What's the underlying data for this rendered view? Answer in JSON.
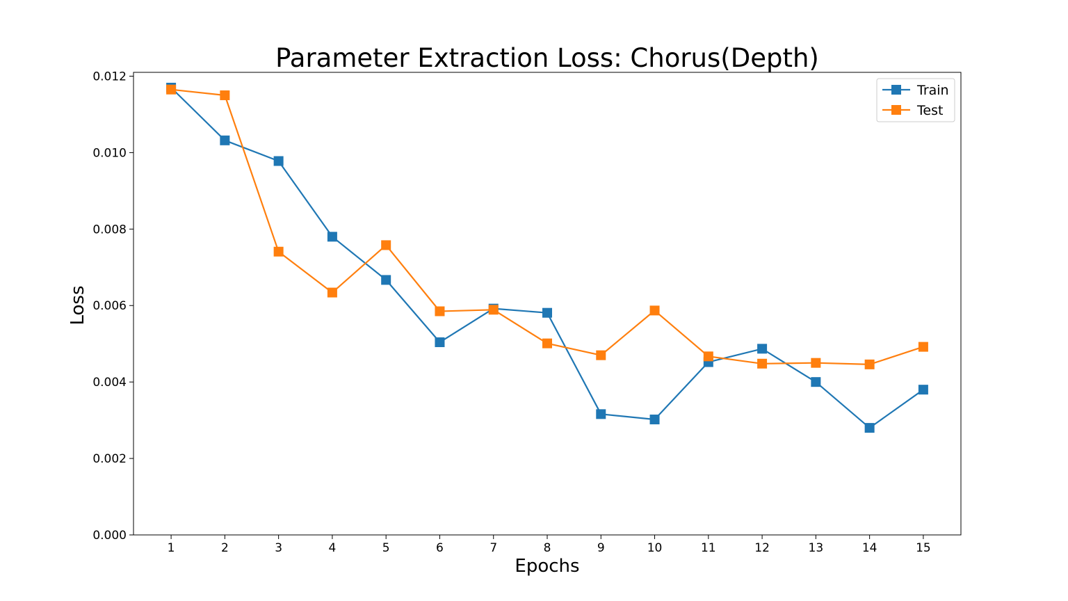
{
  "chart_data": {
    "type": "line",
    "title": "Parameter Extraction Loss: Chorus(Depth)",
    "xlabel": "Epochs",
    "ylabel": "Loss",
    "x": [
      1,
      2,
      3,
      4,
      5,
      6,
      7,
      8,
      9,
      10,
      11,
      12,
      13,
      14,
      15
    ],
    "xticks": [
      "1",
      "2",
      "3",
      "4",
      "5",
      "6",
      "7",
      "8",
      "9",
      "10",
      "11",
      "12",
      "13",
      "14",
      "15"
    ],
    "yticks": [
      "0.000",
      "0.002",
      "0.004",
      "0.006",
      "0.008",
      "0.010",
      "0.012"
    ],
    "ylim": [
      0,
      0.0121
    ],
    "xlim": [
      0.3,
      15.7
    ],
    "grid": false,
    "legend_position": "top-right",
    "series": [
      {
        "name": "Train",
        "color": "#1f77b4",
        "marker": "square",
        "values": [
          0.0117,
          0.01032,
          0.00978,
          0.0078,
          0.00667,
          0.00504,
          0.00592,
          0.00581,
          0.00316,
          0.00302,
          0.00452,
          0.00487,
          0.004,
          0.0028,
          0.0038
        ]
      },
      {
        "name": "Test",
        "color": "#ff7f0e",
        "marker": "square",
        "values": [
          0.01165,
          0.0115,
          0.00741,
          0.00634,
          0.00758,
          0.00585,
          0.00589,
          0.00501,
          0.0047,
          0.00587,
          0.00467,
          0.00448,
          0.0045,
          0.00446,
          0.00492
        ]
      }
    ]
  }
}
